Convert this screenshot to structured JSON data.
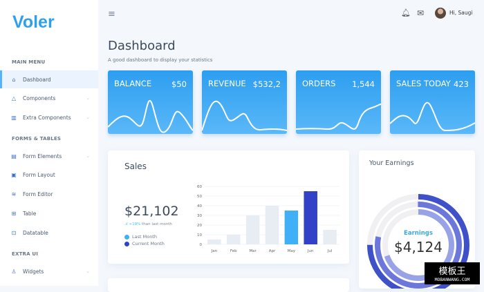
{
  "sidebar": {
    "logo": "Voler",
    "sections": [
      "MAIN MENU",
      "FORMS & TABLES",
      "EXTRA UI"
    ],
    "items": [
      {
        "label": "Dashboard",
        "icon": "home-icon"
      },
      {
        "label": "Components",
        "icon": "triangle-icon"
      },
      {
        "label": "Extra Components",
        "icon": "briefcase-icon"
      },
      {
        "label": "Form Elements",
        "icon": "file-icon"
      },
      {
        "label": "Form Layout",
        "icon": "layout-icon"
      },
      {
        "label": "Form Editor",
        "icon": "layers-icon"
      },
      {
        "label": "Table",
        "icon": "grid-icon"
      },
      {
        "label": "Datatable",
        "icon": "file-plus-icon"
      },
      {
        "label": "Widgets",
        "icon": "user-icon"
      }
    ]
  },
  "header": {
    "greeting": "Hi, Saugi"
  },
  "page": {
    "title": "Dashboard",
    "subtitle": "A good dashboard to display your statistics"
  },
  "stats": [
    {
      "label": "BALANCE",
      "value": "$50"
    },
    {
      "label": "REVENUE",
      "value": "$532,2"
    },
    {
      "label": "ORDERS",
      "value": "1,544"
    },
    {
      "label": "SALES TODAY",
      "value": "423"
    }
  ],
  "sales": {
    "title": "Sales",
    "amount": "$21,102",
    "growth": "+19%",
    "growth_text": " than last month",
    "legend": [
      {
        "label": "Last Month",
        "color": "#3fb0f5"
      },
      {
        "label": "Current Month",
        "color": "#3142c7"
      }
    ]
  },
  "chart_data": {
    "type": "bar",
    "categories": [
      "Jan",
      "Feb",
      "Mar",
      "Apr",
      "May",
      "Jun",
      "Jul"
    ],
    "values": [
      5,
      10,
      30,
      40,
      35,
      55,
      15
    ],
    "highlight": {
      "May": "#3fb0f5",
      "Jun": "#3142c7"
    },
    "default_color": "#e8edf3",
    "ylim": [
      0,
      60
    ],
    "yticks": [
      0,
      10,
      20,
      30,
      40,
      50,
      60
    ],
    "grid": true
  },
  "earnings": {
    "title": "Your Earnings",
    "label": "Earnings",
    "amount": "$4,124"
  },
  "watermark": {
    "text": "模板王",
    "url_text": "MOBANWANG.COM"
  }
}
